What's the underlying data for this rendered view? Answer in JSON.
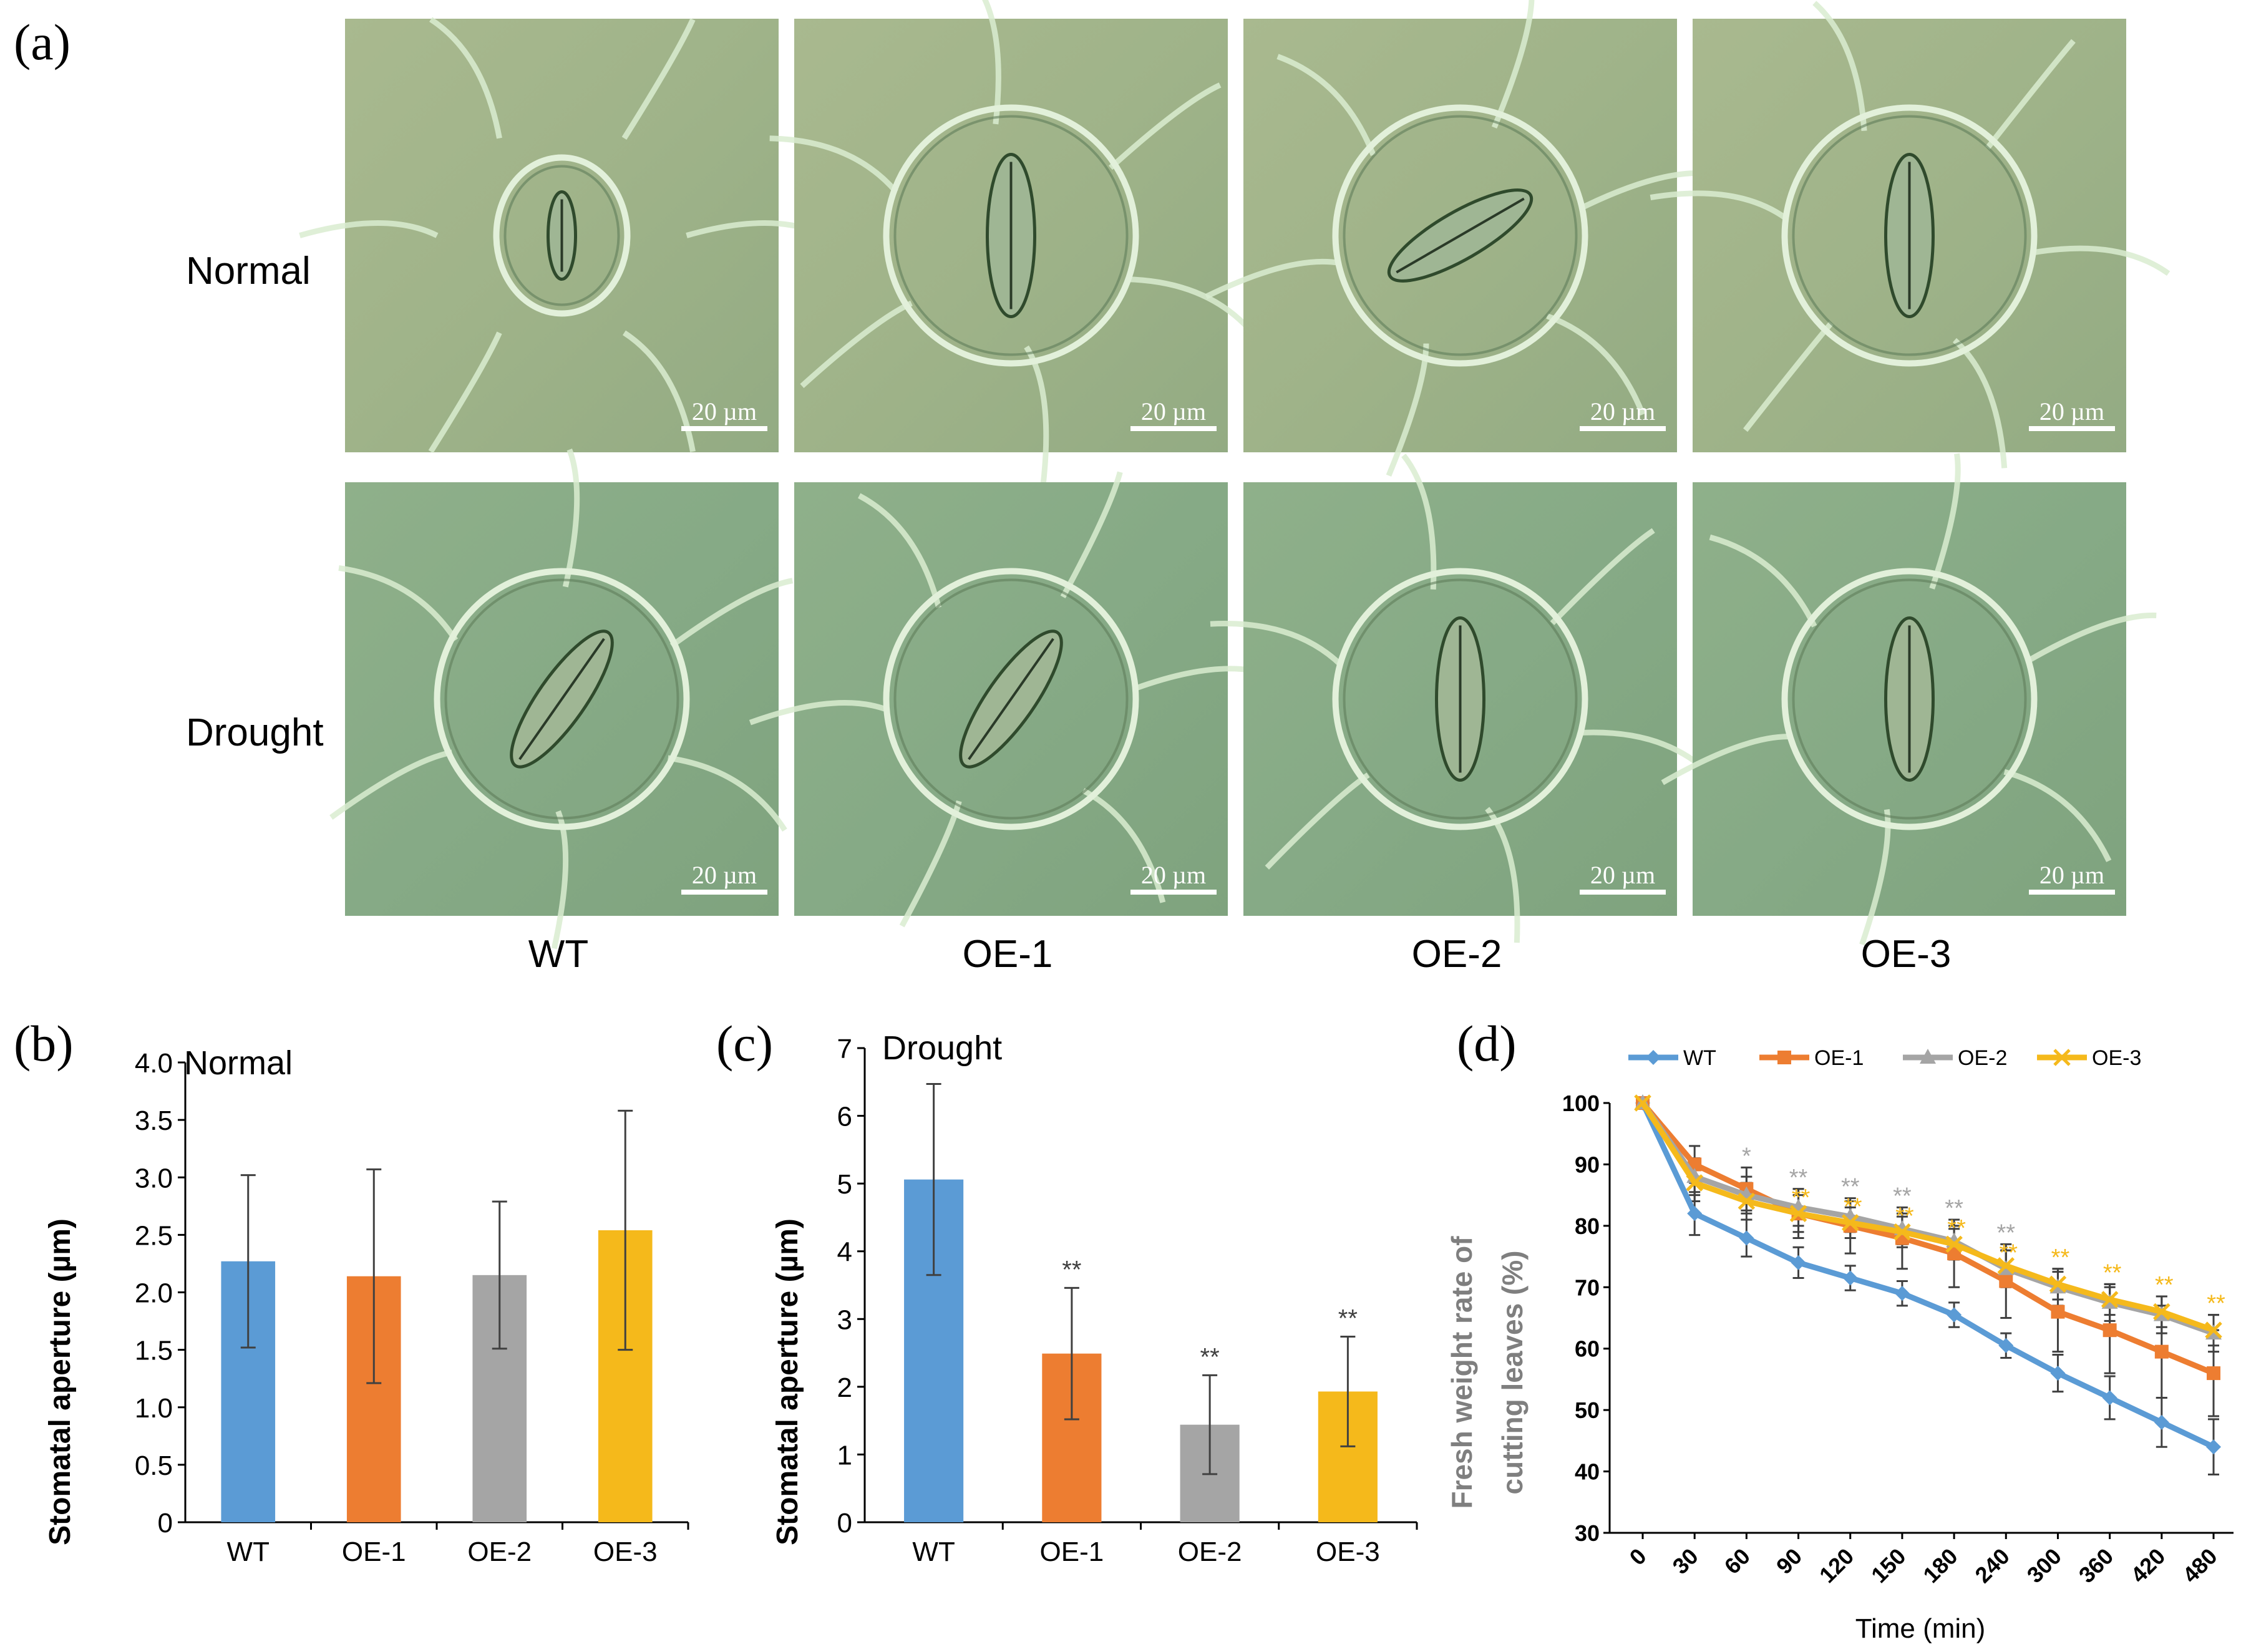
{
  "panel_a": {
    "letter": "(a)",
    "rows": [
      "Normal",
      "Drought"
    ],
    "columns": [
      "WT",
      "OE-1",
      "OE-2",
      "OE-3"
    ],
    "scale_bar": "20 µm"
  },
  "chart_data": [
    {
      "id": "b",
      "letter": "(b)",
      "type": "bar",
      "title": "Normal",
      "ylabel": "Stomatal aperture (µm)",
      "xlabel": "",
      "categories": [
        "WT",
        "OE-1",
        "OE-2",
        "OE-3"
      ],
      "values": [
        2.27,
        2.14,
        2.15,
        2.54
      ],
      "errors": [
        0.75,
        0.93,
        0.64,
        1.04
      ],
      "significance": [
        "",
        "",
        "",
        ""
      ],
      "colors": [
        "#5b9bd5",
        "#ed7d31",
        "#a5a5a5",
        "#f5b91b"
      ],
      "ylim": [
        0,
        4.0
      ],
      "ticks": [
        "0",
        "0.5",
        "1.0",
        "1.5",
        "2.0",
        "2.5",
        "3.0",
        "3.5",
        "4.0"
      ],
      "tick_values": [
        0,
        0.5,
        1.0,
        1.5,
        2.0,
        2.5,
        3.0,
        3.5,
        4.0
      ],
      "grid": false
    },
    {
      "id": "c",
      "letter": "(c)",
      "type": "bar",
      "title": "Drought",
      "ylabel": "Stomatal aperture (µm)",
      "xlabel": "",
      "categories": [
        "WT",
        "OE-1",
        "OE-2",
        "OE-3"
      ],
      "values": [
        5.06,
        2.49,
        1.44,
        1.93
      ],
      "errors": [
        1.41,
        0.97,
        0.73,
        0.81
      ],
      "significance": [
        "",
        "**",
        "**",
        "**"
      ],
      "colors": [
        "#5b9bd5",
        "#ed7d31",
        "#a5a5a5",
        "#f5b91b"
      ],
      "ylim": [
        0,
        7
      ],
      "ticks": [
        "0",
        "1",
        "2",
        "3",
        "4",
        "5",
        "6",
        "7"
      ],
      "tick_values": [
        0,
        1,
        2,
        3,
        4,
        5,
        6,
        7
      ],
      "grid": false
    },
    {
      "id": "d",
      "letter": "(d)",
      "type": "line",
      "title": "",
      "ylabel": "Fresh weight rate of cutting leaves (%)",
      "xlabel": "Time (min)",
      "x": [
        "0",
        "30",
        "60",
        "90",
        "120",
        "150",
        "180",
        "240",
        "300",
        "360",
        "420",
        "480"
      ],
      "ylim": [
        30,
        100
      ],
      "ticks": [
        "30",
        "40",
        "50",
        "60",
        "70",
        "80",
        "90",
        "100"
      ],
      "tick_values": [
        30,
        40,
        50,
        60,
        70,
        80,
        90,
        100
      ],
      "legend_position": "top",
      "grid": false,
      "series": [
        {
          "name": "WT",
          "color": "#5b9bd5",
          "marker": "diamond",
          "values": [
            100,
            82,
            78,
            74,
            71.5,
            69,
            65.5,
            60.5,
            56,
            52,
            48,
            44
          ],
          "errors": [
            0,
            3.5,
            3,
            2.5,
            2,
            2,
            2,
            2,
            3,
            3.5,
            4,
            4.5
          ]
        },
        {
          "name": "OE-1",
          "color": "#ed7d31",
          "marker": "square",
          "values": [
            100,
            90,
            86,
            82,
            80,
            78,
            75.5,
            71,
            66,
            63,
            59.5,
            56
          ],
          "errors": [
            0,
            3,
            3.5,
            4,
            4.5,
            5,
            5.5,
            6,
            6.5,
            7,
            7.5,
            7
          ]
        },
        {
          "name": "OE-2",
          "color": "#a5a5a5",
          "marker": "triangle",
          "values": [
            100,
            88,
            85,
            83,
            81.5,
            79.5,
            77.5,
            73,
            70,
            67.5,
            65.5,
            62.5
          ],
          "errors": [
            0,
            3,
            3,
            3,
            2.5,
            2.5,
            2.5,
            3,
            3,
            3,
            3,
            3
          ]
        },
        {
          "name": "OE-3",
          "color": "#f5b91b",
          "marker": "x",
          "values": [
            100,
            87,
            84,
            82,
            80.5,
            79,
            77,
            73.5,
            70.5,
            68,
            66,
            63
          ],
          "errors": [
            0,
            3,
            3,
            3,
            2.5,
            2.5,
            2.5,
            2.5,
            2.5,
            2.5,
            2.5,
            2.5
          ]
        }
      ],
      "significance": [
        {
          "grey": "",
          "yellow": ""
        },
        {
          "grey": "",
          "yellow": ""
        },
        {
          "grey": "*",
          "yellow": ""
        },
        {
          "grey": "**",
          "yellow": "**"
        },
        {
          "grey": "**",
          "yellow": "**"
        },
        {
          "grey": "**",
          "yellow": "**"
        },
        {
          "grey": "**",
          "yellow": "**"
        },
        {
          "grey": "**",
          "yellow": "**"
        },
        {
          "grey": "",
          "yellow": "**"
        },
        {
          "grey": "",
          "yellow": "**"
        },
        {
          "grey": "",
          "yellow": "**"
        },
        {
          "grey": "",
          "yellow": "**"
        }
      ]
    }
  ]
}
